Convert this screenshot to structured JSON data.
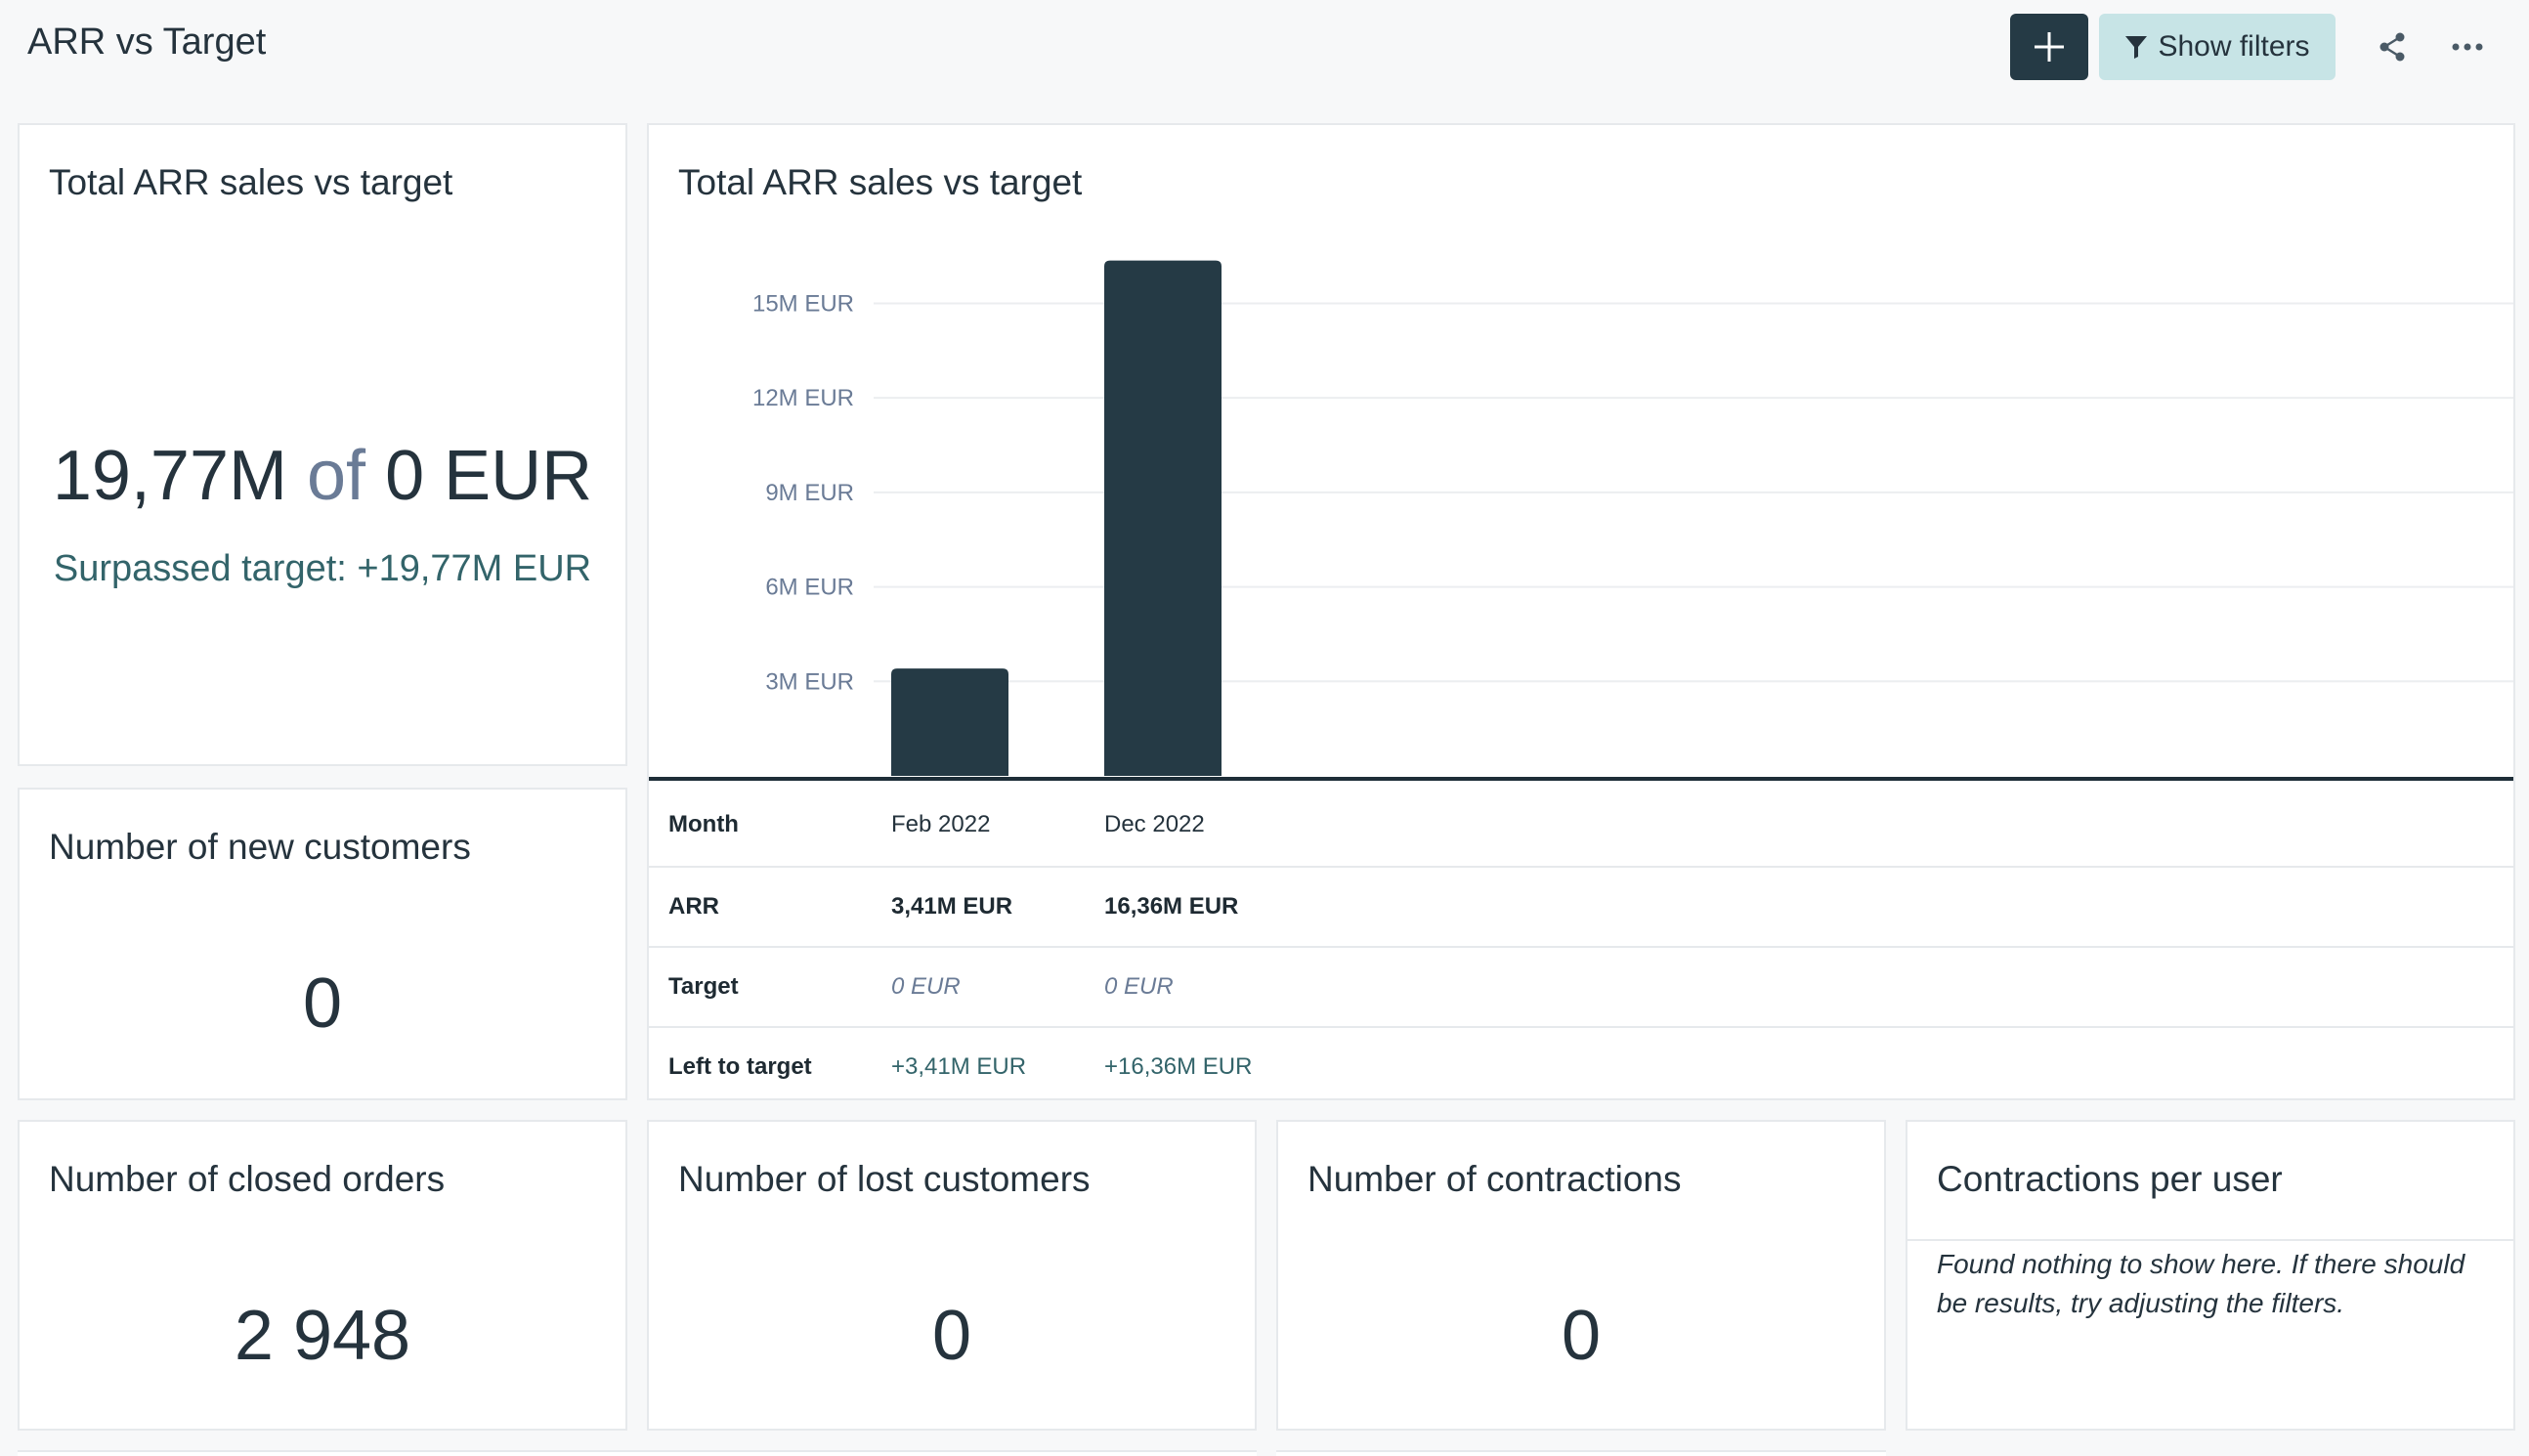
{
  "header": {
    "title": "ARR vs Target",
    "show_filters_label": "Show filters",
    "add_icon": "plus-icon",
    "filter_icon": "filter-icon",
    "share_icon": "share-icon",
    "more_icon": "more-horizontal-icon"
  },
  "colors": {
    "bar": "#253a45",
    "accent": "#c7e4e6",
    "positive": "#33646a"
  },
  "cards": {
    "total_kpi": {
      "title": "Total ARR sales vs target",
      "value": "19,77M",
      "of": "of",
      "target": "0 EUR",
      "surpassed": "Surpassed target: +19,77M EUR"
    },
    "new_customers": {
      "title": "Number of new customers",
      "value": "0"
    },
    "closed_orders": {
      "title": "Number of closed orders",
      "value": "2 948"
    },
    "lost_customers": {
      "title": "Number of lost customers",
      "value": "0"
    },
    "contractions": {
      "title": "Number of contractions",
      "value": "0"
    },
    "contractions_per_user": {
      "title": "Contractions per user",
      "message": "Found nothing to show here. If there should be results, try adjusting the filters."
    }
  },
  "chart_data": {
    "type": "bar",
    "title": "Total ARR sales vs target",
    "categories": [
      "Feb 2022",
      "Dec 2022"
    ],
    "series": [
      {
        "values": [
          3.41,
          16.36
        ]
      }
    ],
    "unit": "M EUR",
    "yticks": [
      "3M EUR",
      "6M EUR",
      "9M EUR",
      "12M EUR",
      "15M EUR"
    ],
    "ytick_values": [
      3,
      6,
      9,
      12,
      15
    ],
    "ylim": [
      0,
      17
    ],
    "grid": true
  },
  "table": {
    "rows": [
      {
        "label": "Month",
        "values": [
          "Feb 2022",
          "Dec 2022"
        ]
      },
      {
        "label": "ARR",
        "values": [
          "3,41M EUR",
          "16,36M EUR"
        ]
      },
      {
        "label": "Target",
        "values": [
          "0 EUR",
          "0 EUR"
        ]
      },
      {
        "label": "Left to target",
        "values": [
          "+3,41M EUR",
          "+16,36M EUR"
        ]
      }
    ]
  }
}
